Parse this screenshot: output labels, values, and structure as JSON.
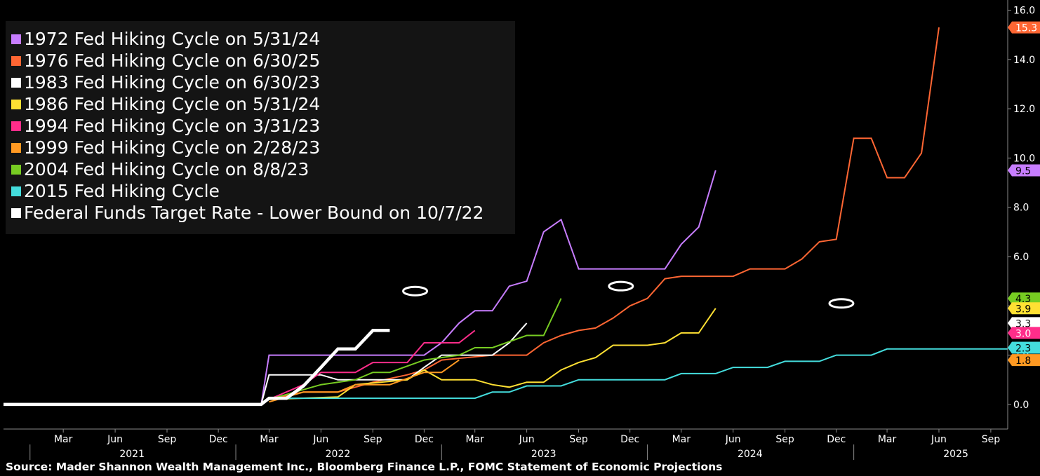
{
  "colors": {
    "background": "#000000",
    "legend_bg": "#141414",
    "axis": "#8a8a8a",
    "text": "#ffffff"
  },
  "chart_data": {
    "type": "line",
    "title": "",
    "xlabel": "",
    "ylabel": "",
    "x_range": [
      "2020-11-15",
      "2025-10-01"
    ],
    "ylim": [
      -1.0,
      16.3
    ],
    "y_ticks": [
      "0.0",
      "2.0",
      "4.0",
      "6.0",
      "8.0",
      "10.0",
      "12.0",
      "14.0",
      "16.0"
    ],
    "x_month_ticks": [
      "Mar",
      "Jun",
      "Sep",
      "Dec",
      "Mar",
      "Jun",
      "Sep",
      "Dec",
      "Mar",
      "Jun",
      "Sep",
      "Dec",
      "Mar",
      "Jun",
      "Sep",
      "Dec",
      "Mar",
      "Jun",
      "Sep"
    ],
    "x_year_labels": [
      "2021",
      "2022",
      "2023",
      "2024",
      "2025"
    ],
    "legend_position": "top-left",
    "grid": false,
    "series": [
      {
        "name": "1972 Fed Hiking Cycle on 5/31/24",
        "color": "#c77dff",
        "end_label": "9.5",
        "stroke": 2,
        "points": [
          [
            "2022-02-15",
            0.0
          ],
          [
            "2022-03-01",
            2.0
          ],
          [
            "2022-12-01",
            2.0
          ],
          [
            "2023-01-01",
            2.5
          ],
          [
            "2023-02-01",
            3.3
          ],
          [
            "2023-03-01",
            3.8
          ],
          [
            "2023-04-01",
            3.8
          ],
          [
            "2023-05-01",
            4.8
          ],
          [
            "2023-06-01",
            5.0
          ],
          [
            "2023-07-01",
            7.0
          ],
          [
            "2023-08-01",
            7.5
          ],
          [
            "2023-09-01",
            5.5
          ],
          [
            "2024-02-01",
            5.5
          ],
          [
            "2024-03-01",
            6.5
          ],
          [
            "2024-04-01",
            7.2
          ],
          [
            "2024-05-01",
            9.5
          ]
        ]
      },
      {
        "name": "1976 Fed Hiking Cycle on 6/30/25",
        "color": "#ff6633",
        "end_label": "15.3",
        "stroke": 2,
        "points": [
          [
            "2022-03-01",
            0.2
          ],
          [
            "2022-05-01",
            0.5
          ],
          [
            "2022-07-01",
            0.5
          ],
          [
            "2022-09-01",
            0.9
          ],
          [
            "2022-11-01",
            1.2
          ],
          [
            "2022-12-01",
            1.4
          ],
          [
            "2023-01-01",
            1.8
          ],
          [
            "2023-04-01",
            2.0
          ],
          [
            "2023-06-01",
            2.0
          ],
          [
            "2023-07-01",
            2.5
          ],
          [
            "2023-08-01",
            2.8
          ],
          [
            "2023-09-01",
            3.0
          ],
          [
            "2023-10-01",
            3.1
          ],
          [
            "2023-11-01",
            3.5
          ],
          [
            "2023-12-01",
            4.0
          ],
          [
            "2024-01-01",
            4.3
          ],
          [
            "2024-02-01",
            5.1
          ],
          [
            "2024-03-01",
            5.2
          ],
          [
            "2024-06-01",
            5.2
          ],
          [
            "2024-07-01",
            5.5
          ],
          [
            "2024-09-01",
            5.5
          ],
          [
            "2024-10-01",
            5.9
          ],
          [
            "2024-11-01",
            6.6
          ],
          [
            "2024-12-01",
            6.7
          ],
          [
            "2025-01-01",
            10.8
          ],
          [
            "2025-02-01",
            10.8
          ],
          [
            "2025-03-01",
            9.2
          ],
          [
            "2025-04-01",
            9.2
          ],
          [
            "2025-05-01",
            10.2
          ],
          [
            "2025-06-01",
            15.3
          ]
        ]
      },
      {
        "name": "1983 Fed Hiking Cycle on 6/30/23",
        "color": "#ffffff",
        "end_label": "3.3",
        "stroke": 2,
        "points": [
          [
            "2022-02-15",
            0.0
          ],
          [
            "2022-03-01",
            1.2
          ],
          [
            "2022-06-01",
            1.2
          ],
          [
            "2022-07-01",
            1.0
          ],
          [
            "2022-08-01",
            1.0
          ],
          [
            "2022-11-01",
            1.0
          ],
          [
            "2022-12-01",
            1.5
          ],
          [
            "2023-01-01",
            2.0
          ],
          [
            "2023-04-01",
            2.0
          ],
          [
            "2023-05-01",
            2.5
          ],
          [
            "2023-06-01",
            3.3
          ]
        ]
      },
      {
        "name": "1986 Fed Hiking Cycle on 5/31/24",
        "color": "#ffe033",
        "end_label": "3.9",
        "stroke": 2,
        "points": [
          [
            "2022-02-15",
            0.0
          ],
          [
            "2022-03-01",
            0.2
          ],
          [
            "2022-07-01",
            0.3
          ],
          [
            "2022-08-01",
            0.8
          ],
          [
            "2022-11-01",
            1.0
          ],
          [
            "2022-12-01",
            1.4
          ],
          [
            "2023-01-01",
            1.0
          ],
          [
            "2023-03-01",
            1.0
          ],
          [
            "2023-04-01",
            0.8
          ],
          [
            "2023-05-01",
            0.7
          ],
          [
            "2023-06-01",
            0.9
          ],
          [
            "2023-07-01",
            0.9
          ],
          [
            "2023-08-01",
            1.4
          ],
          [
            "2023-09-01",
            1.7
          ],
          [
            "2023-10-01",
            1.9
          ],
          [
            "2023-11-01",
            2.4
          ],
          [
            "2024-01-01",
            2.4
          ],
          [
            "2024-02-01",
            2.5
          ],
          [
            "2024-03-01",
            2.9
          ],
          [
            "2024-04-01",
            2.9
          ],
          [
            "2024-05-01",
            3.9
          ]
        ]
      },
      {
        "name": "1994 Fed Hiking Cycle on 3/31/23",
        "color": "#ff2d8a",
        "end_label": "3.0",
        "stroke": 2,
        "points": [
          [
            "2022-02-15",
            0.0
          ],
          [
            "2022-03-01",
            0.2
          ],
          [
            "2022-05-01",
            0.8
          ],
          [
            "2022-06-01",
            1.3
          ],
          [
            "2022-08-01",
            1.3
          ],
          [
            "2022-09-01",
            1.7
          ],
          [
            "2022-11-01",
            1.7
          ],
          [
            "2022-12-01",
            2.5
          ],
          [
            "2023-02-01",
            2.5
          ],
          [
            "2023-03-01",
            3.0
          ]
        ]
      },
      {
        "name": "1999 Fed Hiking Cycle on 2/28/23",
        "color": "#ff9922",
        "end_label": "1.8",
        "stroke": 2,
        "points": [
          [
            "2022-03-01",
            0.1
          ],
          [
            "2022-05-01",
            0.5
          ],
          [
            "2022-07-01",
            0.5
          ],
          [
            "2022-08-01",
            0.8
          ],
          [
            "2022-10-01",
            0.8
          ],
          [
            "2022-12-01",
            1.3
          ],
          [
            "2023-01-01",
            1.3
          ],
          [
            "2023-02-01",
            1.8
          ]
        ]
      },
      {
        "name": "2004 Fed Hiking Cycle on 8/8/23",
        "color": "#77cc22",
        "end_label": "4.3",
        "stroke": 2,
        "points": [
          [
            "2022-02-15",
            0.0
          ],
          [
            "2022-03-01",
            0.2
          ],
          [
            "2022-06-01",
            0.8
          ],
          [
            "2022-08-01",
            1.0
          ],
          [
            "2022-09-01",
            1.3
          ],
          [
            "2022-10-01",
            1.3
          ],
          [
            "2022-12-01",
            1.8
          ],
          [
            "2023-02-01",
            2.0
          ],
          [
            "2023-03-01",
            2.3
          ],
          [
            "2023-04-01",
            2.3
          ],
          [
            "2023-06-01",
            2.8
          ],
          [
            "2023-07-01",
            2.8
          ],
          [
            "2023-08-01",
            4.3
          ]
        ]
      },
      {
        "name": "2015 Fed Hiking Cycle",
        "color": "#44dddd",
        "end_label": "2.3",
        "stroke": 2,
        "points": [
          [
            "2022-03-01",
            0.25
          ],
          [
            "2023-03-01",
            0.25
          ],
          [
            "2023-04-01",
            0.5
          ],
          [
            "2023-05-01",
            0.5
          ],
          [
            "2023-06-01",
            0.75
          ],
          [
            "2023-08-01",
            0.75
          ],
          [
            "2023-09-01",
            1.0
          ],
          [
            "2024-02-01",
            1.0
          ],
          [
            "2024-03-01",
            1.25
          ],
          [
            "2024-05-01",
            1.25
          ],
          [
            "2024-06-01",
            1.5
          ],
          [
            "2024-08-01",
            1.5
          ],
          [
            "2024-09-01",
            1.75
          ],
          [
            "2024-11-01",
            1.75
          ],
          [
            "2024-12-01",
            2.0
          ],
          [
            "2025-02-01",
            2.0
          ],
          [
            "2025-03-01",
            2.25
          ],
          [
            "2025-10-01",
            2.25
          ]
        ]
      },
      {
        "name": "Federal Funds Target Rate - Lower Bound on 10/7/22",
        "color": "#ffffff",
        "stroke": 4.5,
        "points": [
          [
            "2020-11-15",
            0.0
          ],
          [
            "2022-02-15",
            0.0
          ],
          [
            "2022-03-01",
            0.25
          ],
          [
            "2022-04-01",
            0.25
          ],
          [
            "2022-05-01",
            0.75
          ],
          [
            "2022-06-01",
            1.5
          ],
          [
            "2022-07-01",
            2.25
          ],
          [
            "2022-08-01",
            2.25
          ],
          [
            "2022-09-01",
            3.0
          ],
          [
            "2022-10-01",
            3.0
          ]
        ]
      }
    ],
    "annotations": [
      {
        "type": "ellipse",
        "x": "2022-11-15",
        "y": 4.6,
        "color": "#ffffff"
      },
      {
        "type": "ellipse",
        "x": "2023-11-15",
        "y": 4.8,
        "color": "#ffffff"
      },
      {
        "type": "ellipse",
        "x": "2024-12-10",
        "y": 4.1,
        "color": "#ffffff"
      }
    ]
  },
  "footer": {
    "source": "Source: Mader Shannon Wealth Management Inc., Bloomberg Finance L.P., FOMC Statement of Economic Projections"
  }
}
